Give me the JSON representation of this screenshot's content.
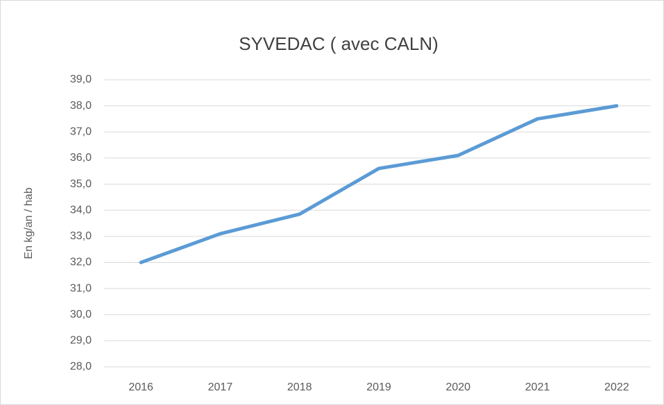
{
  "chart_data": {
    "type": "line",
    "title": "SYVEDAC ( avec CALN)",
    "y_label": "En kg/an / hab",
    "categories": [
      "2016",
      "2017",
      "2018",
      "2019",
      "2020",
      "2021",
      "2022"
    ],
    "series": [
      {
        "name": "SYVEDAC",
        "color": "#5b9bd5",
        "values": [
          32.0,
          33.1,
          33.85,
          35.6,
          36.1,
          37.5,
          38.0
        ]
      }
    ],
    "ylim": [
      28,
      39
    ],
    "yticks": [
      {
        "value": 28,
        "label": "28,0"
      },
      {
        "value": 29,
        "label": "29,0"
      },
      {
        "value": 30,
        "label": "30,0"
      },
      {
        "value": 31,
        "label": "31,0"
      },
      {
        "value": 32,
        "label": "32,0"
      },
      {
        "value": 33,
        "label": "33,0"
      },
      {
        "value": 34,
        "label": "34,0"
      },
      {
        "value": 35,
        "label": "35,0"
      },
      {
        "value": 36,
        "label": "36,0"
      },
      {
        "value": 37,
        "label": "37,0"
      },
      {
        "value": 38,
        "label": "38,0"
      },
      {
        "value": 39,
        "label": "39,0"
      }
    ],
    "grid": true
  }
}
